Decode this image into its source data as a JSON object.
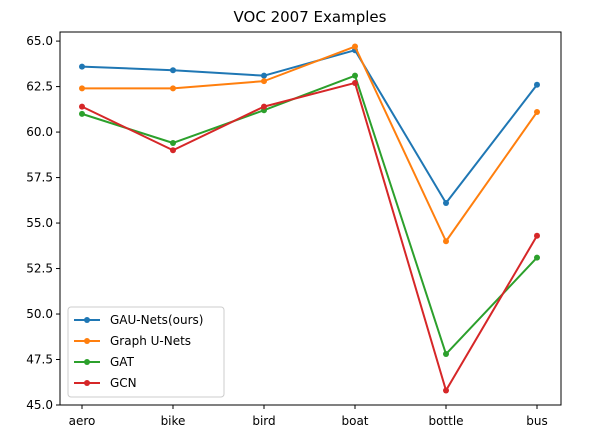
{
  "chart_data": {
    "type": "line",
    "title": "VOC 2007 Examples",
    "xlabel": "",
    "ylabel": "",
    "categories": [
      "aero",
      "bike",
      "bird",
      "boat",
      "bottle",
      "bus"
    ],
    "ylim": [
      45.0,
      65.5
    ],
    "yticks": [
      "45.0",
      "47.5",
      "50.0",
      "52.5",
      "55.0",
      "57.5",
      "60.0",
      "62.5",
      "65.0"
    ],
    "legend_position": "lower-left",
    "grid": false,
    "series": [
      {
        "name": "GAU-Nets(ours)",
        "color": "#1f77b4",
        "values": [
          63.6,
          63.4,
          63.1,
          64.5,
          56.1,
          62.6
        ]
      },
      {
        "name": "Graph U-Nets",
        "color": "#ff7f0e",
        "values": [
          62.4,
          62.4,
          62.8,
          64.7,
          54.0,
          61.1
        ]
      },
      {
        "name": "GAT",
        "color": "#2ca02c",
        "values": [
          61.0,
          59.4,
          61.2,
          63.1,
          47.8,
          53.1
        ]
      },
      {
        "name": "GCN",
        "color": "#d62728",
        "values": [
          61.4,
          59.0,
          61.4,
          62.7,
          45.8,
          54.3
        ]
      }
    ]
  }
}
